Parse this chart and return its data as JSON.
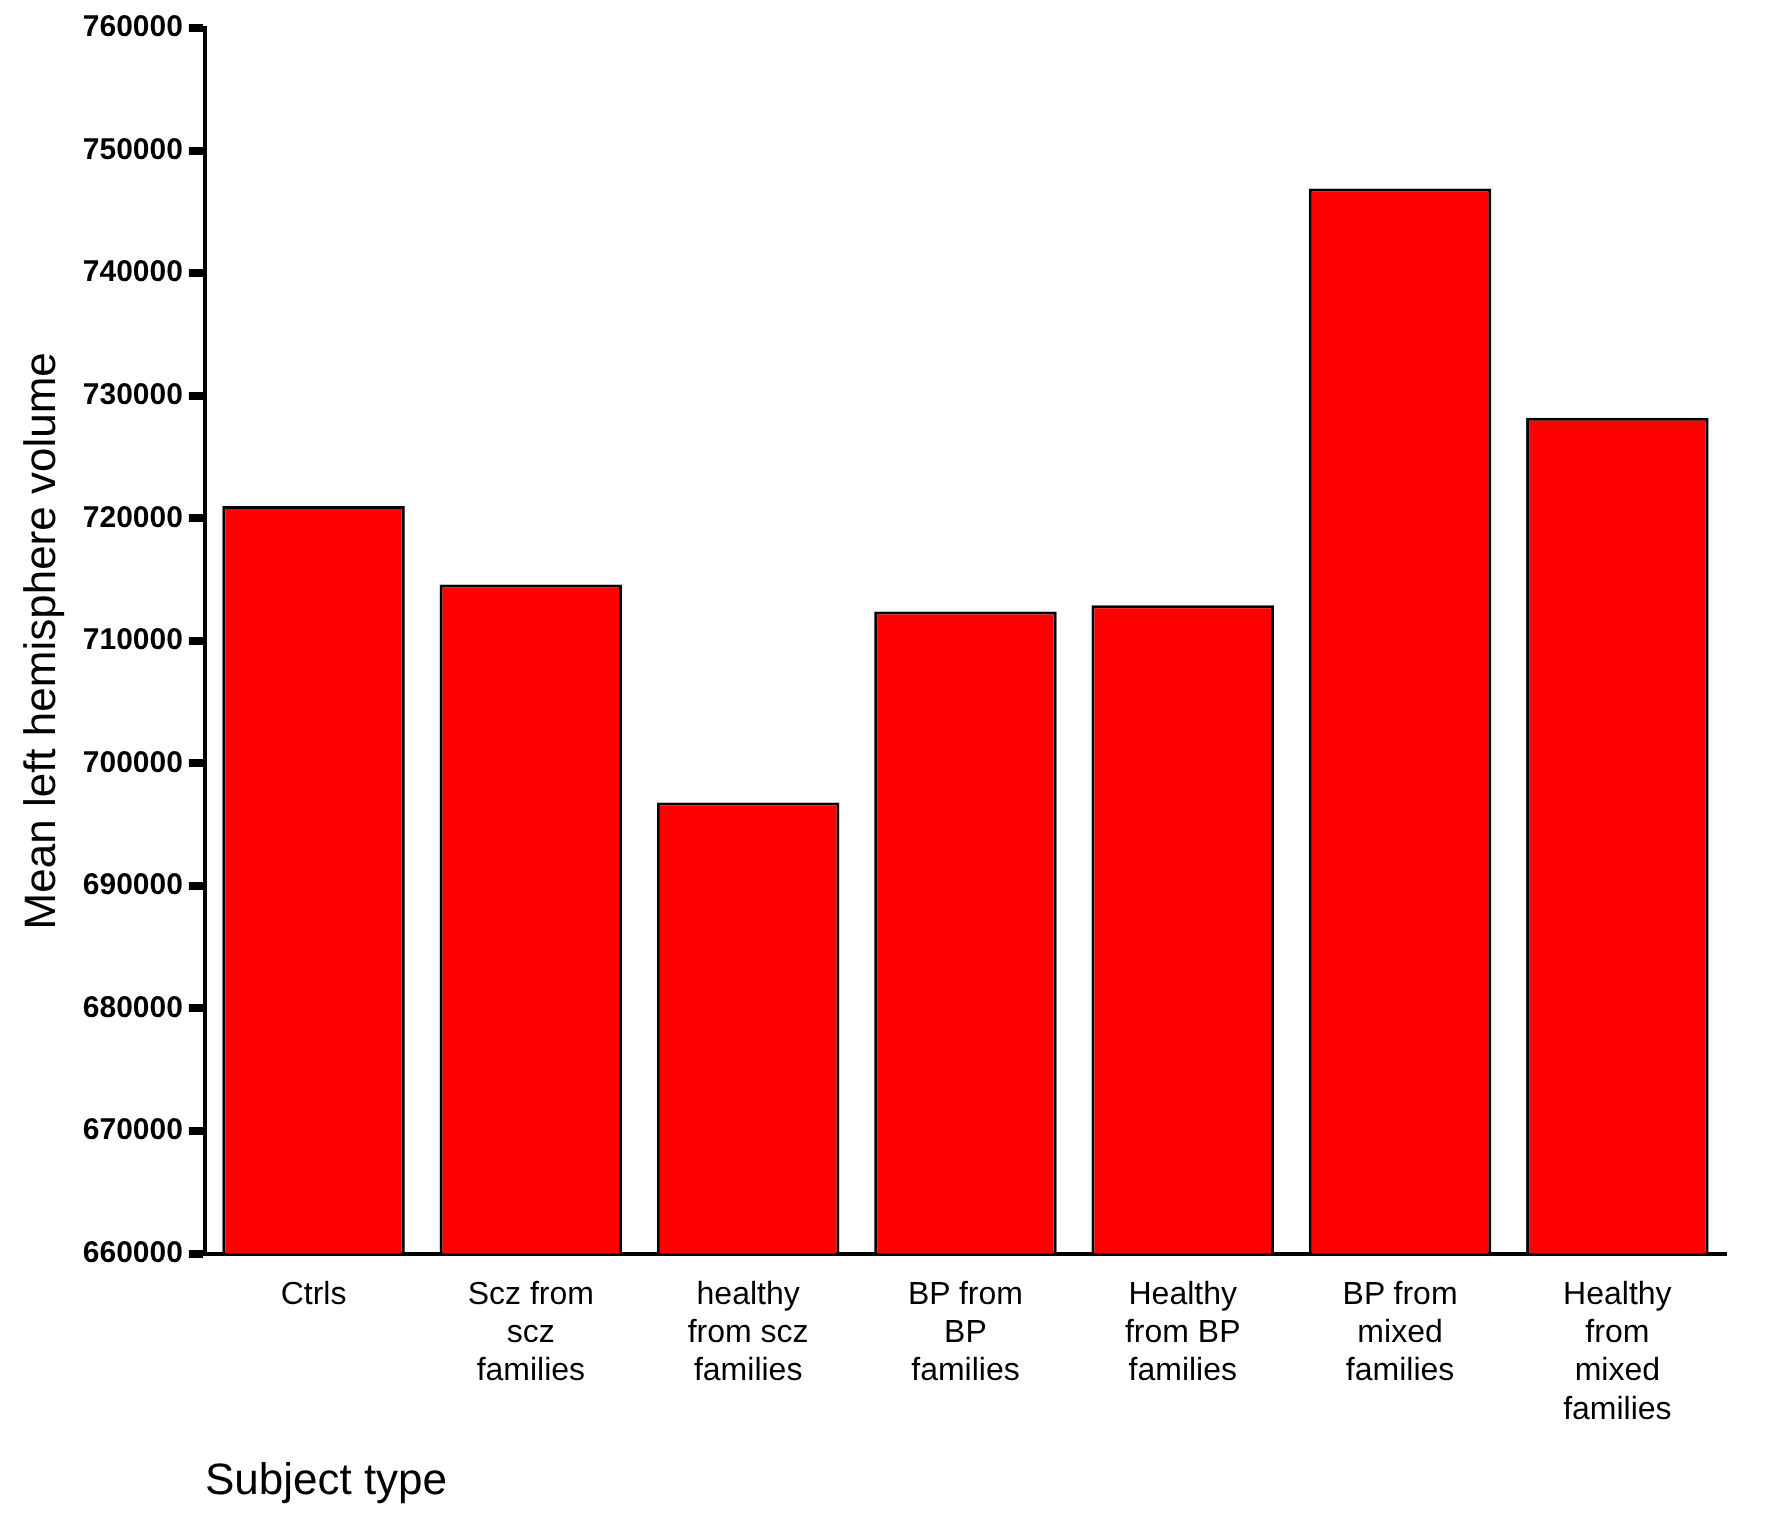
{
  "chart_data": {
    "type": "bar",
    "xlabel": "Subject type",
    "ylabel": "Mean left hemisphere volume",
    "categories": [
      "Ctrls",
      "Scz from scz families",
      "healthy from scz families",
      "BP from BP families",
      "Healthy from BP families",
      "BP from mixed families",
      "Healthy from mixed families"
    ],
    "values": [
      721000,
      714600,
      696800,
      712400,
      712900,
      746900,
      728200
    ],
    "color": "#ff0000",
    "ylim": [
      660000,
      760000
    ],
    "yticks": [
      660000,
      670000,
      680000,
      690000,
      700000,
      710000,
      720000,
      730000,
      740000,
      750000,
      760000
    ],
    "grid": false
  }
}
